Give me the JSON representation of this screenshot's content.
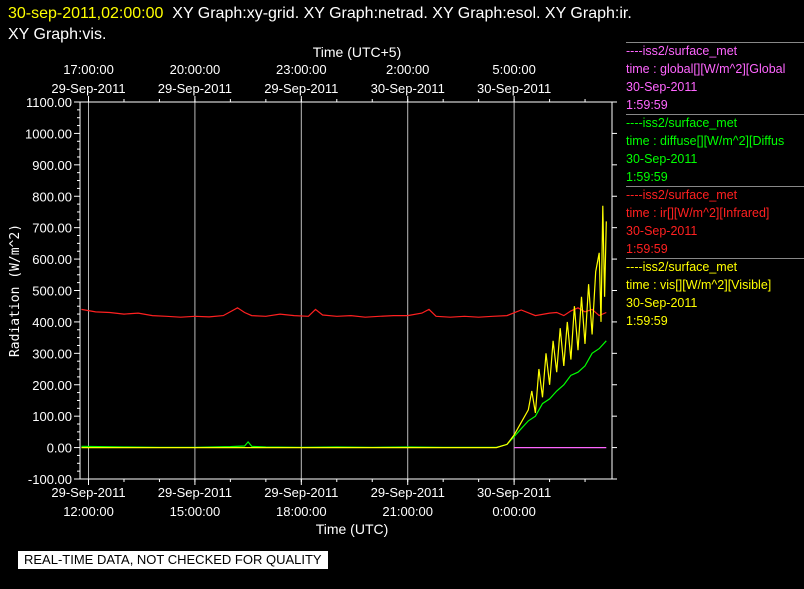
{
  "header": {
    "timestamp": "30-sep-2011,02:00:00",
    "graphs": "XY Graph:xy-grid.  XY Graph:netrad.  XY Graph:esol.  XY Graph:ir.",
    "graphs2": "XY Graph:vis."
  },
  "notice": "REAL-TIME DATA, NOT CHECKED FOR QUALITY",
  "colors": {
    "global": "#ff66ff",
    "diffuse": "#00ff00",
    "ir": "#ff2020",
    "vis": "#ffff00",
    "grid": "#bbbbbb"
  },
  "legend": [
    {
      "key": "global",
      "station": "----iss2/surface_met",
      "field": "time : global[][W/m^2][Global",
      "date": "30-Sep-2011",
      "time": "1:59:59"
    },
    {
      "key": "diffuse",
      "station": "----iss2/surface_met",
      "field": "time : diffuse[][W/m^2][Diffus",
      "date": "30-Sep-2011",
      "time": "1:59:59"
    },
    {
      "key": "ir",
      "station": "----iss2/surface_met",
      "field": "time : ir[][W/m^2][Infrared]",
      "date": "30-Sep-2011",
      "time": "1:59:59"
    },
    {
      "key": "vis",
      "station": "----iss2/surface_met",
      "field": "time : vis[][W/m^2][Visible]",
      "date": "30-Sep-2011",
      "time": "1:59:59"
    }
  ],
  "chart_data": {
    "type": "line",
    "ylabel": "Radiation (W/m^2)",
    "xlabel": "Time (UTC)",
    "top_xlabel": "Time (UTC+5)",
    "ylim": [
      -100,
      1100
    ],
    "yticks": [
      -100,
      0,
      100,
      200,
      300,
      400,
      500,
      600,
      700,
      800,
      900,
      1000,
      1100
    ],
    "ytick_labels": [
      "-100.00",
      "0.00",
      "100.00",
      "200.00",
      "300.00",
      "400.00",
      "500.00",
      "600.00",
      "700.00",
      "800.00",
      "900.00",
      "1000.00",
      "1100.00"
    ],
    "xlim_hours": [
      11.76,
      26.76
    ],
    "xticks": [
      {
        "h": 12,
        "d": "29-Sep-2011",
        "t": "12:00:00"
      },
      {
        "h": 15,
        "d": "29-Sep-2011",
        "t": "15:00:00"
      },
      {
        "h": 18,
        "d": "29-Sep-2011",
        "t": "18:00:00"
      },
      {
        "h": 21,
        "d": "29-Sep-2011",
        "t": "21:00:00"
      },
      {
        "h": 24,
        "d": "30-Sep-2011",
        "t": "0:00:00"
      }
    ],
    "top_xticks": [
      {
        "h": 12,
        "d": "29-Sep-2011",
        "t": "17:00:00"
      },
      {
        "h": 15,
        "d": "29-Sep-2011",
        "t": "20:00:00"
      },
      {
        "h": 18,
        "d": "29-Sep-2011",
        "t": "23:00:00"
      },
      {
        "h": 21,
        "d": "30-Sep-2011",
        "t": "2:00:00"
      },
      {
        "h": 24,
        "d": "30-Sep-2011",
        "t": "5:00:00"
      }
    ],
    "grid": true,
    "series": [
      {
        "key": "ir",
        "name": "ir",
        "x": [
          11.8,
          12.2,
          12.6,
          13.0,
          13.4,
          13.8,
          14.2,
          14.6,
          15.0,
          15.4,
          15.8,
          16.2,
          16.4,
          16.6,
          17.0,
          17.4,
          17.8,
          18.2,
          18.4,
          18.6,
          19.0,
          19.4,
          19.8,
          20.2,
          20.6,
          21.0,
          21.4,
          21.6,
          21.8,
          22.2,
          22.6,
          23.0,
          23.4,
          23.8,
          24.2,
          24.6,
          25.0,
          25.2,
          25.4,
          25.6,
          25.8,
          26.0,
          26.2,
          26.4,
          26.6
        ],
        "y": [
          440,
          432,
          430,
          425,
          428,
          420,
          418,
          415,
          418,
          416,
          420,
          445,
          430,
          420,
          418,
          425,
          420,
          418,
          440,
          422,
          418,
          420,
          415,
          418,
          420,
          420,
          428,
          440,
          418,
          415,
          418,
          415,
          418,
          420,
          438,
          420,
          428,
          430,
          420,
          435,
          445,
          432,
          440,
          420,
          430
        ]
      },
      {
        "key": "diffuse",
        "name": "diffuse",
        "x": [
          11.8,
          13.0,
          14.0,
          15.0,
          16.0,
          16.4,
          16.5,
          16.6,
          17.0,
          18.0,
          19.0,
          20.0,
          21.0,
          22.0,
          23.0,
          23.5,
          23.8,
          24.0,
          24.2,
          24.4,
          24.6,
          24.8,
          25.0,
          25.2,
          25.4,
          25.6,
          25.8,
          26.0,
          26.2,
          26.4,
          26.6
        ],
        "y": [
          4,
          2,
          1,
          1,
          3,
          5,
          18,
          4,
          2,
          1,
          2,
          1,
          2,
          1,
          1,
          1,
          10,
          35,
          60,
          85,
          100,
          140,
          155,
          180,
          200,
          230,
          240,
          260,
          300,
          315,
          340
        ]
      },
      {
        "key": "vis",
        "name": "vis",
        "x": [
          11.8,
          13.0,
          14.0,
          15.0,
          16.0,
          17.0,
          18.0,
          19.0,
          20.0,
          21.0,
          22.0,
          23.0,
          23.5,
          23.8,
          24.0,
          24.2,
          24.4,
          24.5,
          24.6,
          24.7,
          24.8,
          24.9,
          25.0,
          25.1,
          25.2,
          25.3,
          25.4,
          25.5,
          25.6,
          25.7,
          25.8,
          25.9,
          26.0,
          26.1,
          26.2,
          26.3,
          26.4,
          26.45,
          26.5,
          26.55,
          26.6
        ],
        "y": [
          0,
          0,
          0,
          0,
          0,
          0,
          0,
          0,
          0,
          0,
          0,
          0,
          0,
          10,
          40,
          80,
          120,
          180,
          110,
          250,
          160,
          300,
          200,
          340,
          240,
          380,
          260,
          400,
          280,
          450,
          310,
          480,
          330,
          520,
          360,
          560,
          620,
          400,
          770,
          480,
          720
        ]
      },
      {
        "key": "global",
        "name": "global",
        "x": [
          24.0,
          26.6
        ],
        "y": [
          0,
          0
        ]
      }
    ]
  }
}
